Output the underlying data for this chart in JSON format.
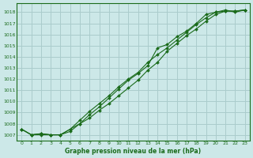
{
  "title": "Graphe pression niveau de la mer (hPa)",
  "bg_color": "#cce8e8",
  "grid_color": "#aacccc",
  "line_color": "#1a6b1a",
  "xlim_min": -0.5,
  "xlim_max": 23.5,
  "ylim_min": 1006.5,
  "ylim_max": 1018.8,
  "yticks": [
    1007,
    1008,
    1009,
    1010,
    1011,
    1012,
    1013,
    1014,
    1015,
    1016,
    1017,
    1018
  ],
  "xticks": [
    0,
    1,
    2,
    3,
    4,
    5,
    6,
    7,
    8,
    9,
    10,
    11,
    12,
    13,
    14,
    15,
    16,
    17,
    18,
    19,
    20,
    21,
    22,
    23
  ],
  "line1": [
    1007.5,
    1007.0,
    1007.0,
    1007.0,
    1007.0,
    1007.5,
    1008.0,
    1008.5,
    1009.2,
    1009.8,
    1010.5,
    1011.2,
    1011.9,
    1012.8,
    1013.5,
    1014.5,
    1015.2,
    1015.9,
    1016.5,
    1017.2,
    1017.8,
    1018.1,
    1018.1,
    1018.2
  ],
  "line2": [
    1007.5,
    1007.0,
    1007.1,
    1007.0,
    1007.0,
    1007.3,
    1008.0,
    1008.8,
    1009.5,
    1010.3,
    1011.1,
    1011.9,
    1012.5,
    1013.2,
    1014.8,
    1015.1,
    1015.8,
    1016.3,
    1017.0,
    1017.8,
    1018.0,
    1018.2,
    1018.0,
    1018.2
  ],
  "line3": [
    1007.5,
    1007.0,
    1007.1,
    1007.0,
    1007.0,
    1007.5,
    1008.3,
    1009.1,
    1009.8,
    1010.5,
    1011.3,
    1012.0,
    1012.6,
    1013.5,
    1014.2,
    1014.8,
    1015.5,
    1016.2,
    1016.9,
    1017.5,
    1018.0,
    1018.1,
    1018.1,
    1018.2
  ],
  "markersize": 2.0,
  "linewidth": 0.8,
  "tick_fontsize": 4.5,
  "xlabel_fontsize": 5.5,
  "figwidth": 3.2,
  "figheight": 2.0,
  "dpi": 100
}
